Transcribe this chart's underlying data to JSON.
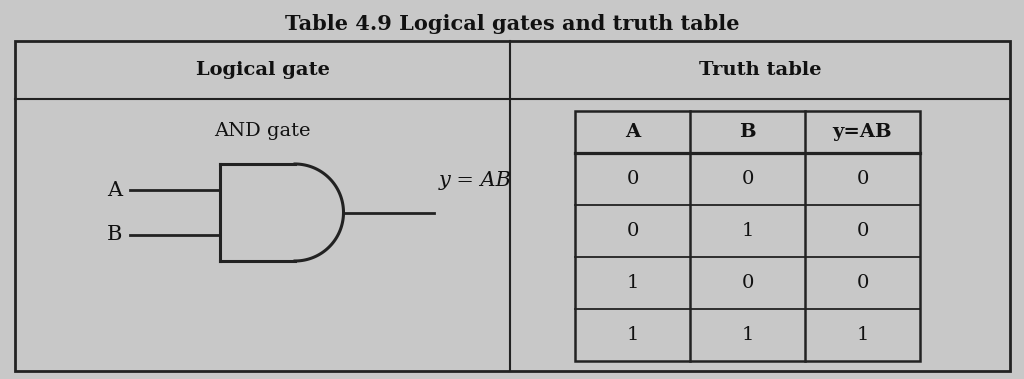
{
  "title": "Table 4.9 Logical gates and truth table",
  "col1_header": "Logical gate",
  "col2_header": "Truth table",
  "gate_label": "AND gate",
  "gate_equation": "y = AB",
  "truth_headers": [
    "A",
    "B",
    "y=AB"
  ],
  "truth_data": [
    [
      "0",
      "0",
      "0"
    ],
    [
      "0",
      "1",
      "0"
    ],
    [
      "1",
      "0",
      "0"
    ],
    [
      "1",
      "1",
      "1"
    ]
  ],
  "bg_color": "#c8c8c8",
  "line_color": "#222222",
  "text_color": "#111111",
  "title_fontsize": 15,
  "header_fontsize": 14,
  "body_fontsize": 13,
  "small_fontsize": 12
}
